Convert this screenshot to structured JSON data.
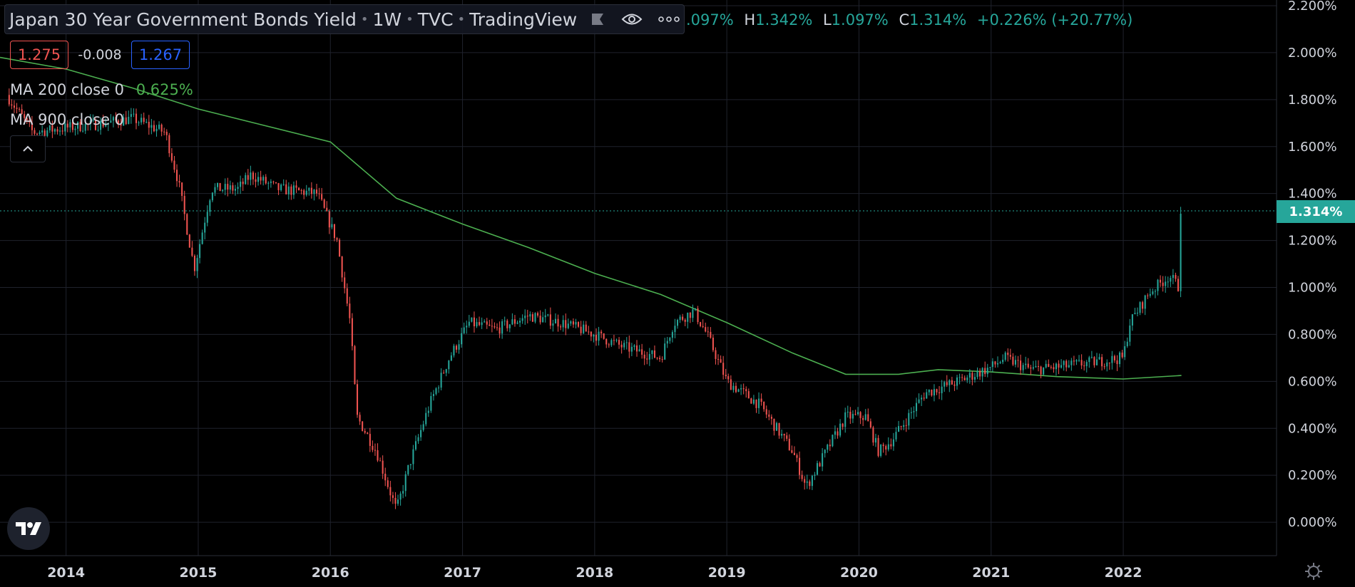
{
  "header": {
    "symbol": "Japan 30 Year Government Bonds Yield",
    "interval": "1W",
    "exchange": "TVC",
    "source": "TradingView"
  },
  "ohlc": {
    "open_partial": ".097%",
    "h_label": "H",
    "high": "1.342%",
    "l_label": "L",
    "low": "1.097%",
    "c_label": "C",
    "close": "1.314%",
    "change": "+0.226% (+20.77%)"
  },
  "price_boxes": {
    "sell": "1.275",
    "spread": "-0.008",
    "buy": "1.267"
  },
  "indicators": {
    "ma200_label": "MA 200 close 0",
    "ma200_value": "0.625%",
    "ma900_label": "MA 900 close 0"
  },
  "last_price_tag": "1.314%",
  "icons": [
    "flag-icon",
    "eye-icon",
    "more-icon",
    "chevron-up-icon",
    "tradingview-logo-icon",
    "settings-icon"
  ],
  "colors": {
    "up": "#26a69a",
    "down": "#ef5350",
    "ma": "#4caf50",
    "background": "#000000",
    "grid": "#1f222c"
  },
  "chart_data": {
    "type": "candlestick",
    "y_axis_ticks": [
      "2.200%",
      "2.000%",
      "1.800%",
      "1.600%",
      "1.400%",
      "1.200%",
      "1.000%",
      "0.800%",
      "0.600%",
      "0.400%",
      "0.200%",
      "0.000%"
    ],
    "x_axis_ticks": [
      "2014",
      "2015",
      "2016",
      "2017",
      "2018",
      "2019",
      "2020",
      "2021",
      "2022"
    ],
    "ylim": [
      -0.2,
      2.2
    ],
    "xlim": [
      2013.5,
      2023.16
    ],
    "price_anchors": [
      [
        2013.55,
        1.82
      ],
      [
        2013.75,
        1.66
      ],
      [
        2014.0,
        1.68
      ],
      [
        2014.3,
        1.7
      ],
      [
        2014.5,
        1.72
      ],
      [
        2014.75,
        1.66
      ],
      [
        2014.85,
        1.45
      ],
      [
        2014.97,
        1.08
      ],
      [
        2015.1,
        1.42
      ],
      [
        2015.3,
        1.42
      ],
      [
        2015.4,
        1.48
      ],
      [
        2015.6,
        1.42
      ],
      [
        2015.9,
        1.4
      ],
      [
        2016.05,
        1.2
      ],
      [
        2016.15,
        0.85
      ],
      [
        2016.2,
        0.45
      ],
      [
        2016.35,
        0.3
      ],
      [
        2016.5,
        0.05
      ],
      [
        2016.6,
        0.25
      ],
      [
        2016.75,
        0.5
      ],
      [
        2016.9,
        0.7
      ],
      [
        2017.05,
        0.85
      ],
      [
        2017.25,
        0.82
      ],
      [
        2017.5,
        0.88
      ],
      [
        2017.75,
        0.85
      ],
      [
        2018.0,
        0.8
      ],
      [
        2018.2,
        0.75
      ],
      [
        2018.5,
        0.7
      ],
      [
        2018.6,
        0.85
      ],
      [
        2018.75,
        0.9
      ],
      [
        2018.85,
        0.8
      ],
      [
        2019.0,
        0.6
      ],
      [
        2019.25,
        0.5
      ],
      [
        2019.5,
        0.3
      ],
      [
        2019.6,
        0.15
      ],
      [
        2019.75,
        0.3
      ],
      [
        2019.9,
        0.45
      ],
      [
        2020.05,
        0.45
      ],
      [
        2020.15,
        0.3
      ],
      [
        2020.25,
        0.35
      ],
      [
        2020.5,
        0.55
      ],
      [
        2020.75,
        0.6
      ],
      [
        2021.0,
        0.66
      ],
      [
        2021.1,
        0.7
      ],
      [
        2021.3,
        0.65
      ],
      [
        2021.5,
        0.66
      ],
      [
        2021.75,
        0.68
      ],
      [
        2022.0,
        0.7
      ],
      [
        2022.05,
        0.85
      ],
      [
        2022.2,
        0.98
      ],
      [
        2022.35,
        1.05
      ],
      [
        2022.42,
        1.0
      ],
      [
        2022.44,
        1.314
      ]
    ],
    "ma200": [
      [
        2013.5,
        1.98
      ],
      [
        2014.0,
        1.93
      ],
      [
        2014.5,
        1.85
      ],
      [
        2015.0,
        1.76
      ],
      [
        2015.5,
        1.69
      ],
      [
        2016.0,
        1.62
      ],
      [
        2016.5,
        1.38
      ],
      [
        2017.0,
        1.27
      ],
      [
        2017.5,
        1.17
      ],
      [
        2018.0,
        1.06
      ],
      [
        2018.5,
        0.97
      ],
      [
        2019.0,
        0.85
      ],
      [
        2019.5,
        0.72
      ],
      [
        2019.9,
        0.63
      ],
      [
        2020.3,
        0.63
      ],
      [
        2020.6,
        0.65
      ],
      [
        2021.0,
        0.64
      ],
      [
        2021.5,
        0.62
      ],
      [
        2022.0,
        0.61
      ],
      [
        2022.44,
        0.625
      ]
    ]
  }
}
